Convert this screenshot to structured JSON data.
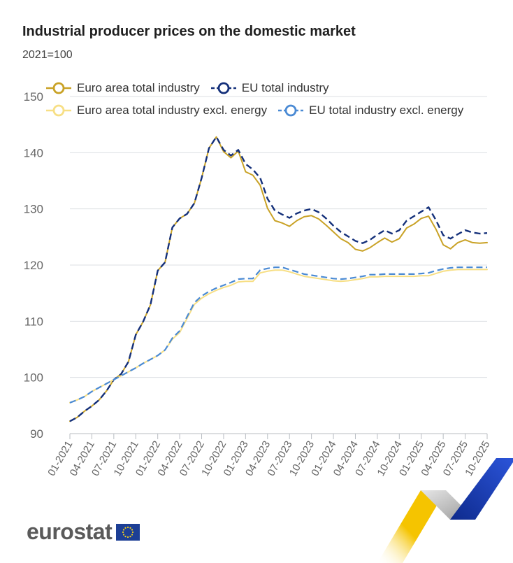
{
  "title": "Industrial producer prices on the domestic market",
  "subtitle": "2021=100",
  "brand": {
    "name": "eurostat"
  },
  "colors": {
    "euro_area_total": "#c9a226",
    "eu_total": "#14307a",
    "euro_area_excl_energy": "#f7df85",
    "eu_excl_energy": "#4a8ad4",
    "grid": "#dcdfe3",
    "axis_text": "#666666"
  },
  "chart_data": {
    "type": "line",
    "title": "Industrial producer prices on the domestic market",
    "subtitle": "2021=100",
    "xlabel": "",
    "ylabel": "",
    "ylim": [
      90,
      150
    ],
    "yticks": [
      90,
      100,
      110,
      120,
      130,
      140,
      150
    ],
    "grid": true,
    "legend_position": "top",
    "xtick_labels": [
      "01-2021",
      "04-2021",
      "07-2021",
      "10-2021",
      "01-2022",
      "04-2022",
      "07-2022",
      "10-2022",
      "01-2023",
      "04-2023",
      "07-2023",
      "10-2023",
      "01-2024",
      "04-2024",
      "07-2024",
      "10-2024",
      "01-2025",
      "04-2025",
      "07-2025",
      "10-2025"
    ],
    "x": [
      "01-2021",
      "02-2021",
      "03-2021",
      "04-2021",
      "05-2021",
      "06-2021",
      "07-2021",
      "08-2021",
      "09-2021",
      "10-2021",
      "11-2021",
      "12-2021",
      "01-2022",
      "02-2022",
      "03-2022",
      "04-2022",
      "05-2022",
      "06-2022",
      "07-2022",
      "08-2022",
      "09-2022",
      "10-2022",
      "11-2022",
      "12-2022",
      "01-2023",
      "02-2023",
      "03-2023",
      "04-2023",
      "05-2023",
      "06-2023",
      "07-2023",
      "08-2023",
      "09-2023",
      "10-2023",
      "11-2023",
      "12-2023",
      "01-2024",
      "02-2024",
      "03-2024",
      "04-2024",
      "05-2024",
      "06-2024",
      "07-2024",
      "08-2024",
      "09-2024",
      "10-2024",
      "11-2024",
      "12-2024",
      "01-2025",
      "02-2025",
      "03-2025",
      "04-2025",
      "05-2025",
      "06-2025",
      "07-2025",
      "08-2025",
      "09-2025",
      "10-2025"
    ],
    "series": [
      {
        "name": "Euro area total industry",
        "color": "#c9a226",
        "dashed": false,
        "width": 2,
        "values": [
          92.2,
          92.9,
          94.0,
          94.9,
          96.0,
          97.6,
          99.6,
          100.6,
          102.8,
          107.6,
          109.9,
          112.9,
          119.0,
          120.5,
          126.7,
          128.3,
          129.1,
          131.0,
          135.5,
          140.8,
          142.8,
          140.2,
          139.1,
          140.3,
          136.6,
          136.0,
          134.2,
          130.1,
          127.9,
          127.5,
          126.9,
          127.9,
          128.6,
          128.8,
          128.2,
          127.1,
          125.9,
          124.7,
          124.0,
          122.8,
          122.5,
          123.1,
          124.0,
          124.8,
          124.1,
          124.7,
          126.6,
          127.3,
          128.3,
          128.7,
          126.4,
          123.6,
          122.9,
          124.0,
          124.5,
          124.0,
          123.9,
          124.0
        ]
      },
      {
        "name": "EU total industry",
        "color": "#14307a",
        "dashed": true,
        "width": 2.4,
        "values": [
          92.2,
          92.9,
          94.0,
          94.9,
          96.0,
          97.6,
          99.6,
          100.6,
          102.8,
          107.6,
          109.9,
          112.9,
          119.0,
          120.5,
          126.7,
          128.3,
          129.1,
          131.0,
          135.5,
          140.8,
          142.8,
          140.5,
          139.5,
          140.5,
          138.0,
          137.0,
          135.5,
          131.8,
          129.7,
          129.0,
          128.4,
          129.2,
          129.7,
          130.0,
          129.4,
          128.3,
          127.0,
          125.9,
          125.1,
          124.3,
          123.9,
          124.5,
          125.4,
          126.2,
          125.6,
          126.2,
          127.9,
          128.7,
          129.5,
          130.3,
          128.0,
          125.3,
          124.7,
          125.5,
          126.2,
          125.8,
          125.6,
          125.7
        ]
      },
      {
        "name": "Euro area total industry excl. energy",
        "color": "#f7df85",
        "dashed": false,
        "width": 2,
        "values": [
          95.5,
          96.0,
          96.6,
          97.5,
          98.2,
          98.9,
          99.6,
          100.3,
          101.0,
          101.7,
          102.5,
          103.2,
          103.9,
          104.9,
          106.8,
          108.0,
          110.5,
          113.0,
          114.1,
          114.9,
          115.5,
          116.0,
          116.4,
          117.0,
          117.1,
          117.1,
          118.6,
          118.9,
          119.1,
          119.1,
          118.8,
          118.4,
          118.0,
          117.8,
          117.6,
          117.4,
          117.2,
          117.1,
          117.2,
          117.4,
          117.6,
          117.9,
          117.9,
          118.0,
          118.0,
          118.0,
          118.0,
          118.0,
          118.1,
          118.1,
          118.5,
          118.9,
          119.1,
          119.2,
          119.2,
          119.2,
          119.2,
          119.2
        ]
      },
      {
        "name": "EU total industry excl. energy",
        "color": "#4a8ad4",
        "dashed": true,
        "width": 2.2,
        "values": [
          95.5,
          96.0,
          96.6,
          97.5,
          98.2,
          98.9,
          99.6,
          100.3,
          101.0,
          101.7,
          102.5,
          103.2,
          103.9,
          104.9,
          107.0,
          108.3,
          110.8,
          113.3,
          114.5,
          115.3,
          115.9,
          116.4,
          116.9,
          117.5,
          117.6,
          117.6,
          119.1,
          119.4,
          119.6,
          119.6,
          119.2,
          118.8,
          118.4,
          118.2,
          118.0,
          117.8,
          117.6,
          117.5,
          117.6,
          117.8,
          118.0,
          118.3,
          118.3,
          118.4,
          118.4,
          118.4,
          118.4,
          118.4,
          118.5,
          118.6,
          119.0,
          119.3,
          119.5,
          119.6,
          119.6,
          119.6,
          119.6,
          119.6
        ]
      }
    ]
  }
}
